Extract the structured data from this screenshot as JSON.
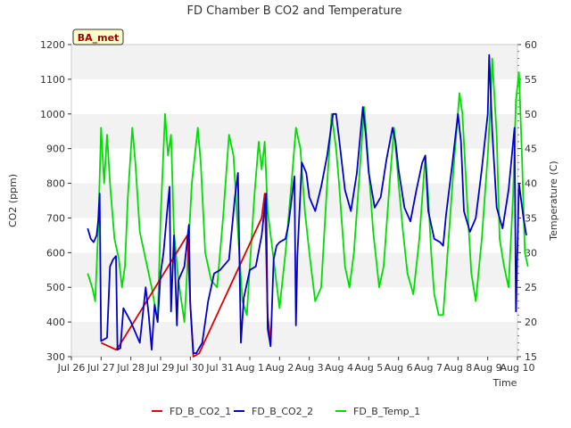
{
  "chart_data": {
    "type": "line",
    "title": "FD Chamber B CO2 and Temperature",
    "xlabel": "Time",
    "ylabel_left": "CO2 (ppm)",
    "ylabel_right": "Temperature (C)",
    "site_badge": "BA_met",
    "x_range": [
      "Jul 26",
      "Aug 10"
    ],
    "x_tick_labels": [
      "Jul 26",
      "Jul 27",
      "Jul 28",
      "Jul 29",
      "Jul 30",
      "Jul 31",
      "Aug 1",
      "Aug 2",
      "Aug 3",
      "Aug 4",
      "Aug 5",
      "Aug 6",
      "Aug 7",
      "Aug 8",
      "Aug 9",
      "Aug 10"
    ],
    "ylim_left": [
      300,
      1200
    ],
    "yticks_left": [
      300,
      400,
      500,
      600,
      700,
      800,
      900,
      1000,
      1100,
      1200
    ],
    "ylim_right": [
      15,
      60
    ],
    "yticks_right": [
      15,
      20,
      25,
      30,
      35,
      40,
      45,
      50,
      55,
      60
    ],
    "grid": "horizontal bands",
    "legend_position": "bottom",
    "series": [
      {
        "name": "FD_B_CO2_1",
        "axis": "left",
        "color": "#dd0000",
        "points": [
          [
            1.0,
            340
          ],
          [
            1.5,
            320
          ],
          [
            1.6,
            330
          ],
          [
            3.9,
            650
          ],
          [
            4.0,
            450
          ],
          [
            4.1,
            300
          ],
          [
            4.2,
            305
          ],
          [
            4.3,
            310
          ],
          [
            6.4,
            700
          ],
          [
            6.5,
            770
          ],
          [
            6.6,
            420
          ],
          [
            6.7,
            340
          ]
        ]
      },
      {
        "name": "FD_B_CO2_2",
        "axis": "left",
        "color": "#0000cc",
        "points": [
          [
            0.55,
            670
          ],
          [
            0.65,
            640
          ],
          [
            0.75,
            630
          ],
          [
            0.85,
            650
          ],
          [
            0.9,
            690
          ],
          [
            0.95,
            770
          ],
          [
            1.0,
            345
          ],
          [
            1.1,
            350
          ],
          [
            1.2,
            355
          ],
          [
            1.3,
            560
          ],
          [
            1.4,
            580
          ],
          [
            1.5,
            590
          ],
          [
            1.55,
            320
          ],
          [
            1.65,
            325
          ],
          [
            1.75,
            440
          ],
          [
            2.0,
            400
          ],
          [
            2.3,
            340
          ],
          [
            2.5,
            500
          ],
          [
            2.6,
            420
          ],
          [
            2.7,
            320
          ],
          [
            2.8,
            450
          ],
          [
            2.9,
            400
          ],
          [
            3.0,
            540
          ],
          [
            3.1,
            600
          ],
          [
            3.2,
            700
          ],
          [
            3.3,
            790
          ],
          [
            3.35,
            430
          ],
          [
            3.45,
            650
          ],
          [
            3.55,
            390
          ],
          [
            3.6,
            520
          ],
          [
            3.8,
            560
          ],
          [
            3.95,
            680
          ],
          [
            4.0,
            450
          ],
          [
            4.1,
            310
          ],
          [
            4.2,
            310
          ],
          [
            4.4,
            340
          ],
          [
            4.6,
            460
          ],
          [
            4.8,
            540
          ],
          [
            5.0,
            550
          ],
          [
            5.3,
            580
          ],
          [
            5.5,
            760
          ],
          [
            5.6,
            830
          ],
          [
            5.7,
            340
          ],
          [
            5.8,
            470
          ],
          [
            6.0,
            550
          ],
          [
            6.2,
            560
          ],
          [
            6.4,
            650
          ],
          [
            6.55,
            770
          ],
          [
            6.6,
            380
          ],
          [
            6.7,
            330
          ],
          [
            6.8,
            580
          ],
          [
            6.9,
            620
          ],
          [
            7.0,
            630
          ],
          [
            7.2,
            640
          ],
          [
            7.3,
            680
          ],
          [
            7.5,
            820
          ],
          [
            7.55,
            390
          ],
          [
            7.6,
            590
          ],
          [
            7.75,
            860
          ],
          [
            7.9,
            830
          ],
          [
            8.0,
            760
          ],
          [
            8.2,
            720
          ],
          [
            8.4,
            790
          ],
          [
            8.6,
            880
          ],
          [
            8.8,
            1000
          ],
          [
            8.9,
            1000
          ],
          [
            9.0,
            930
          ],
          [
            9.2,
            780
          ],
          [
            9.4,
            720
          ],
          [
            9.6,
            830
          ],
          [
            9.8,
            1020
          ],
          [
            9.9,
            940
          ],
          [
            10.0,
            830
          ],
          [
            10.2,
            730
          ],
          [
            10.4,
            760
          ],
          [
            10.6,
            870
          ],
          [
            10.8,
            960
          ],
          [
            10.9,
            920
          ],
          [
            11.0,
            840
          ],
          [
            11.2,
            730
          ],
          [
            11.4,
            690
          ],
          [
            11.6,
            780
          ],
          [
            11.8,
            860
          ],
          [
            11.9,
            880
          ],
          [
            12.0,
            720
          ],
          [
            12.2,
            640
          ],
          [
            12.4,
            630
          ],
          [
            12.5,
            620
          ],
          [
            12.6,
            710
          ],
          [
            12.8,
            850
          ],
          [
            13.0,
            1000
          ],
          [
            13.1,
            920
          ],
          [
            13.2,
            720
          ],
          [
            13.4,
            660
          ],
          [
            13.6,
            700
          ],
          [
            13.8,
            840
          ],
          [
            14.0,
            1000
          ],
          [
            14.05,
            1170
          ],
          [
            14.15,
            950
          ],
          [
            14.3,
            730
          ],
          [
            14.5,
            670
          ],
          [
            14.7,
            780
          ],
          [
            14.9,
            960
          ],
          [
            14.95,
            430
          ],
          [
            15.05,
            800
          ],
          [
            15.2,
            700
          ],
          [
            15.3,
            650
          ]
        ]
      },
      {
        "name": "FD_B_Temp_1",
        "axis": "right",
        "color": "#00dd00",
        "points": [
          [
            0.55,
            27
          ],
          [
            0.7,
            25
          ],
          [
            0.8,
            23
          ],
          [
            0.9,
            33
          ],
          [
            1.0,
            48
          ],
          [
            1.1,
            40
          ],
          [
            1.2,
            47
          ],
          [
            1.3,
            40
          ],
          [
            1.45,
            32
          ],
          [
            1.6,
            29
          ],
          [
            1.7,
            25
          ],
          [
            1.8,
            28
          ],
          [
            1.9,
            38
          ],
          [
            2.05,
            48
          ],
          [
            2.15,
            43
          ],
          [
            2.3,
            33
          ],
          [
            2.5,
            29
          ],
          [
            2.7,
            25
          ],
          [
            2.9,
            20
          ],
          [
            3.0,
            35
          ],
          [
            3.15,
            50
          ],
          [
            3.25,
            44
          ],
          [
            3.35,
            47
          ],
          [
            3.45,
            33
          ],
          [
            3.6,
            26
          ],
          [
            3.8,
            20
          ],
          [
            3.9,
            28
          ],
          [
            4.05,
            40
          ],
          [
            4.25,
            48
          ],
          [
            4.35,
            43
          ],
          [
            4.5,
            30
          ],
          [
            4.7,
            26
          ],
          [
            4.9,
            25
          ],
          [
            5.1,
            35
          ],
          [
            5.3,
            47
          ],
          [
            5.45,
            44
          ],
          [
            5.6,
            33
          ],
          [
            5.75,
            23
          ],
          [
            5.9,
            21
          ],
          [
            6.0,
            28
          ],
          [
            6.15,
            38
          ],
          [
            6.3,
            46
          ],
          [
            6.4,
            42
          ],
          [
            6.5,
            46
          ],
          [
            6.6,
            36
          ],
          [
            6.8,
            29
          ],
          [
            7.0,
            22
          ],
          [
            7.2,
            30
          ],
          [
            7.4,
            40
          ],
          [
            7.55,
            48
          ],
          [
            7.7,
            45
          ],
          [
            7.85,
            36
          ],
          [
            8.0,
            30
          ],
          [
            8.2,
            23
          ],
          [
            8.4,
            25
          ],
          [
            8.6,
            40
          ],
          [
            8.75,
            50
          ],
          [
            8.9,
            45
          ],
          [
            9.0,
            40
          ],
          [
            9.2,
            28
          ],
          [
            9.35,
            25
          ],
          [
            9.5,
            30
          ],
          [
            9.7,
            42
          ],
          [
            9.85,
            51
          ],
          [
            10.0,
            42
          ],
          [
            10.15,
            33
          ],
          [
            10.35,
            25
          ],
          [
            10.5,
            28
          ],
          [
            10.7,
            40
          ],
          [
            10.85,
            48
          ],
          [
            11.0,
            40
          ],
          [
            11.15,
            33
          ],
          [
            11.3,
            27
          ],
          [
            11.5,
            24
          ],
          [
            11.7,
            32
          ],
          [
            11.9,
            44
          ],
          [
            12.0,
            38
          ],
          [
            12.1,
            30
          ],
          [
            12.2,
            24
          ],
          [
            12.35,
            21
          ],
          [
            12.5,
            21
          ],
          [
            12.65,
            30
          ],
          [
            12.85,
            42
          ],
          [
            13.05,
            53
          ],
          [
            13.15,
            50
          ],
          [
            13.3,
            38
          ],
          [
            13.45,
            27
          ],
          [
            13.6,
            23
          ],
          [
            13.8,
            32
          ],
          [
            14.0,
            44
          ],
          [
            14.1,
            52
          ],
          [
            14.15,
            58
          ],
          [
            14.3,
            47
          ],
          [
            14.4,
            32
          ],
          [
            14.55,
            28
          ],
          [
            14.7,
            25
          ],
          [
            14.85,
            38
          ],
          [
            14.95,
            52
          ],
          [
            15.05,
            56
          ],
          [
            15.15,
            44
          ],
          [
            15.25,
            30
          ],
          [
            15.35,
            28
          ]
        ]
      }
    ]
  }
}
